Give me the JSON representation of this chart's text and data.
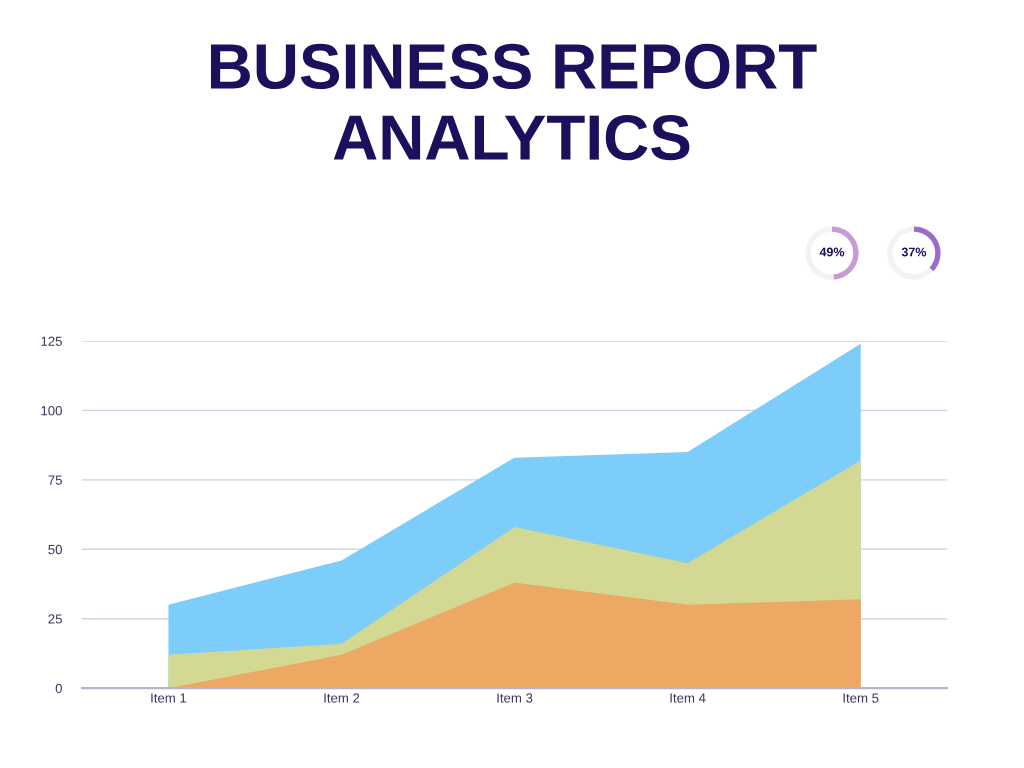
{
  "chart_data": [
    {
      "type": "area",
      "title": "BUSINESS REPORT\nANALYTICS",
      "categories": [
        "Item 1",
        "Item 2",
        "Item 3",
        "Item 4",
        "Item 5"
      ],
      "series": [
        {
          "color": "#7dcdfb",
          "values": [
            30,
            46,
            83,
            85,
            124
          ]
        },
        {
          "color": "#d3d992",
          "values": [
            12,
            16,
            58,
            45,
            82
          ]
        },
        {
          "color": "#eda964",
          "values": [
            0,
            12,
            38,
            30,
            32
          ]
        }
      ],
      "ylim": [
        0,
        125
      ],
      "yticks": [
        0,
        25,
        50,
        75,
        100,
        125
      ],
      "grid": "y"
    },
    {
      "type": "donut",
      "categories": [
        null,
        null
      ],
      "values": [
        49,
        51
      ],
      "colors": [
        "#c99ad6",
        "#f3f3f5"
      ],
      "annotations": [
        "49%"
      ]
    },
    {
      "type": "donut",
      "categories": [
        null,
        null
      ],
      "values": [
        37,
        63
      ],
      "colors": [
        "#9b6bcc",
        "#f3f3f5"
      ],
      "annotations": [
        "37%"
      ]
    }
  ]
}
